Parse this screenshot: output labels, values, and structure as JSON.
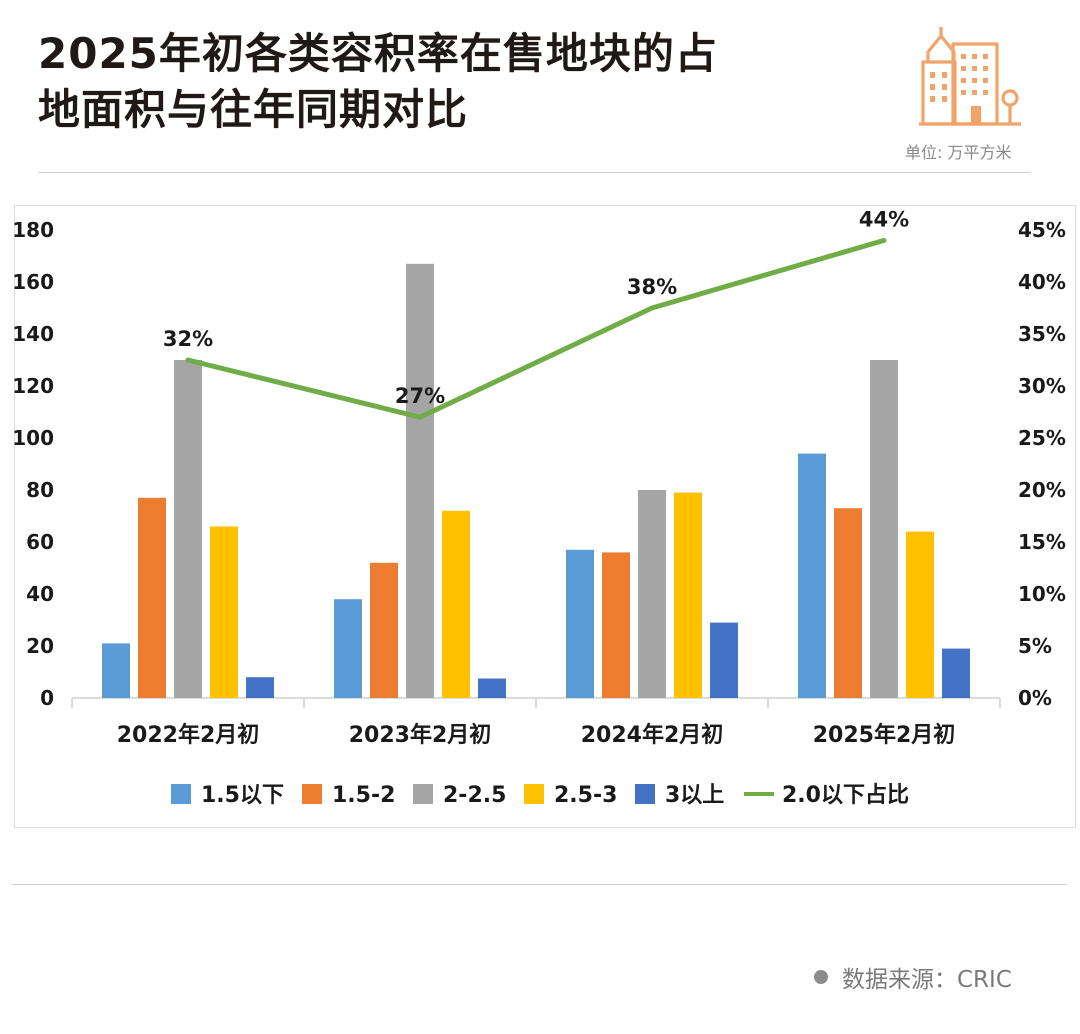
{
  "header": {
    "title_line1": "2025年初各类容积率在售地块的占",
    "title_line2": "地面积与往年同期对比",
    "unit": "单位: 万平方米"
  },
  "footer": {
    "source": "数据来源：CRIC"
  },
  "colors": {
    "s1": "#5b9bd5",
    "s2": "#ed7d31",
    "s3": "#a5a5a5",
    "s4": "#ffc000",
    "s5": "#4472c4",
    "line": "#70ad47",
    "logo": "#f0a46a"
  },
  "chart_data": {
    "type": "bar",
    "categories": [
      "2022年2月初",
      "2023年2月初",
      "2024年2月初",
      "2025年2月初"
    ],
    "series": [
      {
        "name": "1.5以下",
        "type": "bar",
        "axis": "left",
        "color": "#5b9bd5",
        "values": [
          21,
          38,
          57,
          94
        ]
      },
      {
        "name": "1.5-2",
        "type": "bar",
        "axis": "left",
        "color": "#ed7d31",
        "values": [
          77,
          52,
          56,
          73
        ]
      },
      {
        "name": "2-2.5",
        "type": "bar",
        "axis": "left",
        "color": "#a5a5a5",
        "values": [
          130,
          167,
          80,
          130
        ]
      },
      {
        "name": "2.5-3",
        "type": "bar",
        "axis": "left",
        "color": "#ffc000",
        "values": [
          66,
          72,
          79,
          64
        ]
      },
      {
        "name": "3以上",
        "type": "bar",
        "axis": "left",
        "color": "#4472c4",
        "values": [
          8,
          7.5,
          29,
          19
        ]
      },
      {
        "name": "2.0以下占比",
        "type": "line",
        "axis": "right",
        "color": "#70ad47",
        "values": [
          32.5,
          27,
          37.5,
          44
        ],
        "labels": [
          "32%",
          "27%",
          "38%",
          "44%"
        ]
      }
    ],
    "y_left": {
      "ylim": [
        0,
        180
      ],
      "ticks": [
        0,
        20,
        40,
        60,
        80,
        100,
        120,
        140,
        160,
        180
      ]
    },
    "y_right": {
      "ylim": [
        0,
        45
      ],
      "ticks": [
        "0%",
        "5%",
        "10%",
        "15%",
        "20%",
        "25%",
        "30%",
        "35%",
        "40%",
        "45%"
      ]
    },
    "legend": "bottom",
    "grid": false
  }
}
